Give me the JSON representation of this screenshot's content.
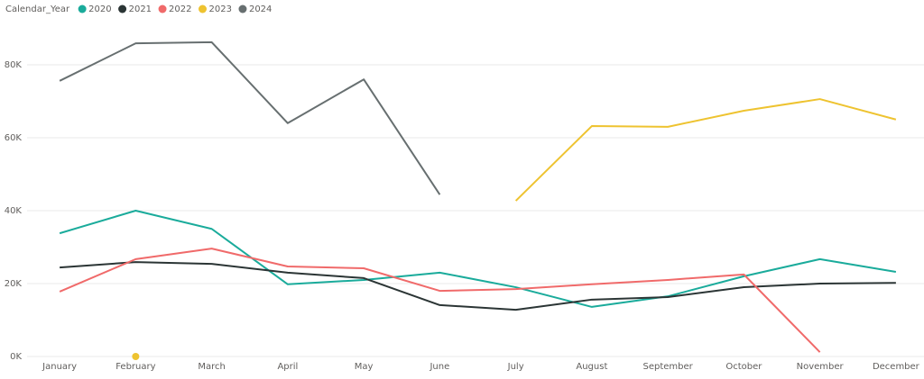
{
  "chart_data": {
    "type": "line",
    "legend_title": "Calendar_Year",
    "legend": "top-left",
    "categories": [
      "January",
      "February",
      "March",
      "April",
      "May",
      "June",
      "July",
      "August",
      "September",
      "October",
      "November",
      "December"
    ],
    "series": [
      {
        "name": "2020",
        "color": "#1AAB9B",
        "values": [
          33800,
          40000,
          35000,
          19800,
          21000,
          23000,
          19000,
          13600,
          16500,
          22000,
          26700,
          23200
        ]
      },
      {
        "name": "2021",
        "color": "#2B3535",
        "values": [
          24400,
          25900,
          25400,
          23000,
          21500,
          14100,
          12800,
          15600,
          16300,
          19000,
          20000,
          20200
        ]
      },
      {
        "name": "2022",
        "color": "#F06A6A",
        "values": [
          17800,
          26700,
          29600,
          24700,
          24200,
          18000,
          18500,
          19800,
          21000,
          22500,
          1200,
          null
        ]
      },
      {
        "name": "2023",
        "color": "#EEC330",
        "values": [
          null,
          0,
          null,
          null,
          null,
          null,
          42700,
          63200,
          63000,
          67400,
          70600,
          65000
        ]
      },
      {
        "name": "2024",
        "color": "#676F70",
        "values": [
          75600,
          85900,
          86200,
          64000,
          76000,
          44400,
          null,
          null,
          null,
          null,
          null,
          null
        ]
      }
    ],
    "ylim": [
      0,
      92000
    ],
    "yticks": [
      {
        "value": 0,
        "label": "0K"
      },
      {
        "value": 20000,
        "label": "20K"
      },
      {
        "value": 40000,
        "label": "40K"
      },
      {
        "value": 60000,
        "label": "60K"
      },
      {
        "value": 80000,
        "label": "80K"
      }
    ],
    "grid": true
  }
}
